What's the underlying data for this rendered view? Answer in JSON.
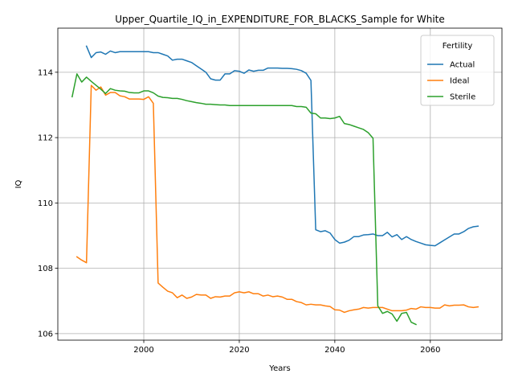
{
  "chart_data": {
    "type": "line",
    "title": "Upper_Quartile_IQ_in_EXPENDITURE_FOR_BLACKS_Sample for White",
    "xlabel": "Years",
    "ylabel": "IQ",
    "xlim": [
      1982,
      2075
    ],
    "ylim": [
      105.8,
      115.35
    ],
    "xticks": [
      2000,
      2020,
      2040,
      2060
    ],
    "yticks": [
      106,
      108,
      110,
      112,
      114
    ],
    "grid": true,
    "legend": {
      "title": "Fertility",
      "placement": "top-right"
    },
    "series": [
      {
        "name": "Actual",
        "color": "#1f77b4",
        "points": [
          [
            1988,
            114.8
          ],
          [
            1989,
            114.45
          ],
          [
            1990,
            114.6
          ],
          [
            1991,
            114.62
          ],
          [
            1992,
            114.55
          ],
          [
            1993,
            114.65
          ],
          [
            1994,
            114.6
          ],
          [
            1995,
            114.63
          ],
          [
            1996,
            114.63
          ],
          [
            1997,
            114.63
          ],
          [
            1998,
            114.63
          ],
          [
            1999,
            114.63
          ],
          [
            2000,
            114.63
          ],
          [
            2001,
            114.63
          ],
          [
            2002,
            114.6
          ],
          [
            2003,
            114.6
          ],
          [
            2004,
            114.55
          ],
          [
            2005,
            114.5
          ],
          [
            2006,
            114.37
          ],
          [
            2007,
            114.4
          ],
          [
            2008,
            114.4
          ],
          [
            2009,
            114.35
          ],
          [
            2010,
            114.3
          ],
          [
            2011,
            114.2
          ],
          [
            2012,
            114.1
          ],
          [
            2013,
            114.0
          ],
          [
            2014,
            113.8
          ],
          [
            2015,
            113.76
          ],
          [
            2016,
            113.76
          ],
          [
            2017,
            113.95
          ],
          [
            2018,
            113.95
          ],
          [
            2019,
            114.05
          ],
          [
            2020,
            114.03
          ],
          [
            2021,
            113.97
          ],
          [
            2022,
            114.07
          ],
          [
            2023,
            114.03
          ],
          [
            2024,
            114.06
          ],
          [
            2025,
            114.06
          ],
          [
            2026,
            114.13
          ],
          [
            2027,
            114.13
          ],
          [
            2028,
            114.13
          ],
          [
            2029,
            114.12
          ],
          [
            2030,
            114.12
          ],
          [
            2031,
            114.11
          ],
          [
            2032,
            114.09
          ],
          [
            2033,
            114.05
          ],
          [
            2034,
            113.97
          ],
          [
            2035,
            113.75
          ],
          [
            2036,
            109.18
          ],
          [
            2037,
            109.12
          ],
          [
            2038,
            109.15
          ],
          [
            2039,
            109.08
          ],
          [
            2040,
            108.88
          ],
          [
            2041,
            108.77
          ],
          [
            2042,
            108.8
          ],
          [
            2043,
            108.86
          ],
          [
            2044,
            108.97
          ],
          [
            2045,
            108.97
          ],
          [
            2046,
            109.02
          ],
          [
            2047,
            109.03
          ],
          [
            2048,
            109.05
          ],
          [
            2049,
            109.0
          ],
          [
            2050,
            109.0
          ],
          [
            2051,
            109.1
          ],
          [
            2052,
            108.96
          ],
          [
            2053,
            109.03
          ],
          [
            2054,
            108.88
          ],
          [
            2055,
            108.97
          ],
          [
            2056,
            108.88
          ],
          [
            2057,
            108.82
          ],
          [
            2058,
            108.77
          ],
          [
            2059,
            108.72
          ],
          [
            2060,
            108.7
          ],
          [
            2061,
            108.69
          ],
          [
            2062,
            108.78
          ],
          [
            2063,
            108.87
          ],
          [
            2064,
            108.96
          ],
          [
            2065,
            109.05
          ],
          [
            2066,
            109.05
          ],
          [
            2067,
            109.12
          ],
          [
            2068,
            109.22
          ],
          [
            2069,
            109.27
          ],
          [
            2070,
            109.29
          ]
        ]
      },
      {
        "name": "Ideal",
        "color": "#ff7f0e",
        "points": [
          [
            1986,
            108.35
          ],
          [
            1987,
            108.25
          ],
          [
            1988,
            108.17
          ],
          [
            1989,
            113.6
          ],
          [
            1990,
            113.45
          ],
          [
            1991,
            113.55
          ],
          [
            1992,
            113.3
          ],
          [
            1993,
            113.38
          ],
          [
            1994,
            113.38
          ],
          [
            1995,
            113.28
          ],
          [
            1996,
            113.25
          ],
          [
            1997,
            113.18
          ],
          [
            1998,
            113.18
          ],
          [
            1999,
            113.18
          ],
          [
            2000,
            113.17
          ],
          [
            2001,
            113.25
          ],
          [
            2002,
            113.05
          ],
          [
            2003,
            107.55
          ],
          [
            2004,
            107.42
          ],
          [
            2005,
            107.3
          ],
          [
            2006,
            107.25
          ],
          [
            2007,
            107.1
          ],
          [
            2008,
            107.18
          ],
          [
            2009,
            107.08
          ],
          [
            2010,
            107.12
          ],
          [
            2011,
            107.2
          ],
          [
            2012,
            107.18
          ],
          [
            2013,
            107.18
          ],
          [
            2014,
            107.08
          ],
          [
            2015,
            107.13
          ],
          [
            2016,
            107.12
          ],
          [
            2017,
            107.15
          ],
          [
            2018,
            107.15
          ],
          [
            2019,
            107.25
          ],
          [
            2020,
            107.28
          ],
          [
            2021,
            107.25
          ],
          [
            2022,
            107.28
          ],
          [
            2023,
            107.22
          ],
          [
            2024,
            107.22
          ],
          [
            2025,
            107.15
          ],
          [
            2026,
            107.18
          ],
          [
            2027,
            107.13
          ],
          [
            2028,
            107.15
          ],
          [
            2029,
            107.12
          ],
          [
            2030,
            107.05
          ],
          [
            2031,
            107.05
          ],
          [
            2032,
            106.98
          ],
          [
            2033,
            106.95
          ],
          [
            2034,
            106.88
          ],
          [
            2035,
            106.9
          ],
          [
            2036,
            106.88
          ],
          [
            2037,
            106.88
          ],
          [
            2038,
            106.85
          ],
          [
            2039,
            106.83
          ],
          [
            2040,
            106.73
          ],
          [
            2041,
            106.72
          ],
          [
            2042,
            106.65
          ],
          [
            2043,
            106.7
          ],
          [
            2044,
            106.73
          ],
          [
            2045,
            106.75
          ],
          [
            2046,
            106.8
          ],
          [
            2047,
            106.78
          ],
          [
            2048,
            106.8
          ],
          [
            2049,
            106.8
          ],
          [
            2050,
            106.8
          ],
          [
            2051,
            106.75
          ],
          [
            2052,
            106.7
          ],
          [
            2053,
            106.7
          ],
          [
            2054,
            106.7
          ],
          [
            2055,
            106.72
          ],
          [
            2056,
            106.77
          ],
          [
            2057,
            106.75
          ],
          [
            2058,
            106.82
          ],
          [
            2059,
            106.8
          ],
          [
            2060,
            106.8
          ],
          [
            2061,
            106.78
          ],
          [
            2062,
            106.78
          ],
          [
            2063,
            106.88
          ],
          [
            2064,
            106.85
          ],
          [
            2065,
            106.87
          ],
          [
            2066,
            106.87
          ],
          [
            2067,
            106.88
          ],
          [
            2068,
            106.82
          ],
          [
            2069,
            106.8
          ],
          [
            2070,
            106.82
          ]
        ]
      },
      {
        "name": "Sterile",
        "color": "#2ca02c",
        "points": [
          [
            1985,
            113.25
          ],
          [
            1986,
            113.95
          ],
          [
            1987,
            113.7
          ],
          [
            1988,
            113.85
          ],
          [
            1989,
            113.72
          ],
          [
            1990,
            113.6
          ],
          [
            1991,
            113.48
          ],
          [
            1992,
            113.35
          ],
          [
            1993,
            113.5
          ],
          [
            1994,
            113.45
          ],
          [
            1995,
            113.43
          ],
          [
            1996,
            113.42
          ],
          [
            1997,
            113.38
          ],
          [
            1998,
            113.37
          ],
          [
            1999,
            113.37
          ],
          [
            2000,
            113.43
          ],
          [
            2001,
            113.43
          ],
          [
            2002,
            113.37
          ],
          [
            2003,
            113.27
          ],
          [
            2004,
            113.23
          ],
          [
            2005,
            113.22
          ],
          [
            2006,
            113.2
          ],
          [
            2007,
            113.2
          ],
          [
            2008,
            113.17
          ],
          [
            2009,
            113.13
          ],
          [
            2010,
            113.1
          ],
          [
            2011,
            113.07
          ],
          [
            2012,
            113.05
          ],
          [
            2013,
            113.02
          ],
          [
            2014,
            113.02
          ],
          [
            2015,
            113.01
          ],
          [
            2016,
            113.0
          ],
          [
            2017,
            113.0
          ],
          [
            2018,
            112.98
          ],
          [
            2019,
            112.98
          ],
          [
            2020,
            112.98
          ],
          [
            2021,
            112.98
          ],
          [
            2022,
            112.98
          ],
          [
            2023,
            112.98
          ],
          [
            2024,
            112.98
          ],
          [
            2025,
            112.98
          ],
          [
            2026,
            112.98
          ],
          [
            2027,
            112.98
          ],
          [
            2028,
            112.98
          ],
          [
            2029,
            112.98
          ],
          [
            2030,
            112.98
          ],
          [
            2031,
            112.98
          ],
          [
            2032,
            112.95
          ],
          [
            2033,
            112.95
          ],
          [
            2034,
            112.93
          ],
          [
            2035,
            112.75
          ],
          [
            2036,
            112.73
          ],
          [
            2037,
            112.6
          ],
          [
            2038,
            112.6
          ],
          [
            2039,
            112.58
          ],
          [
            2040,
            112.6
          ],
          [
            2041,
            112.65
          ],
          [
            2042,
            112.43
          ],
          [
            2043,
            112.4
          ],
          [
            2044,
            112.35
          ],
          [
            2045,
            112.3
          ],
          [
            2046,
            112.25
          ],
          [
            2047,
            112.15
          ],
          [
            2048,
            111.98
          ],
          [
            2049,
            106.85
          ],
          [
            2050,
            106.62
          ],
          [
            2051,
            106.68
          ],
          [
            2052,
            106.6
          ],
          [
            2053,
            106.38
          ],
          [
            2054,
            106.62
          ],
          [
            2055,
            106.65
          ],
          [
            2056,
            106.35
          ],
          [
            2057,
            106.28
          ]
        ]
      }
    ]
  }
}
